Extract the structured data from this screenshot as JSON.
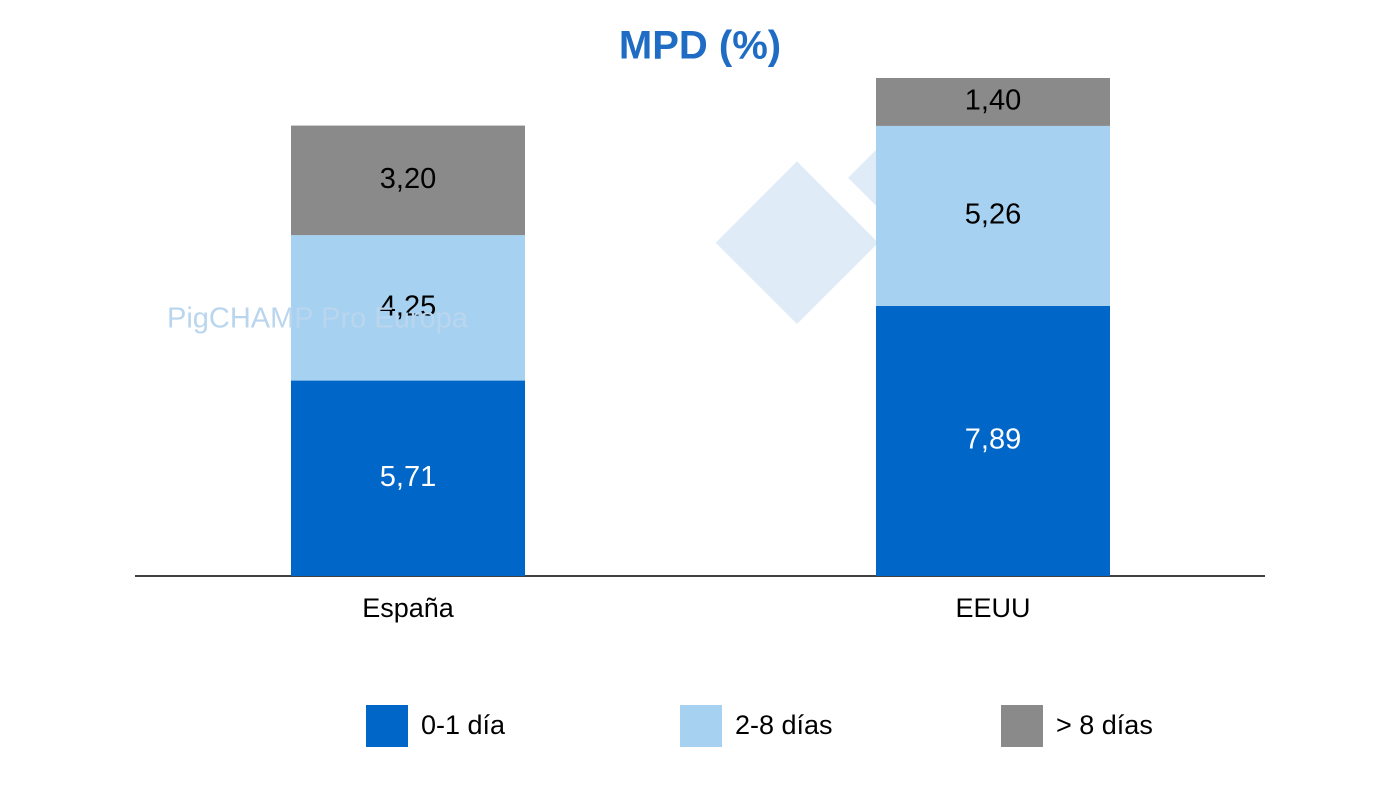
{
  "chart_data": {
    "type": "stacked_bar",
    "title": "MPD (%)",
    "watermark": "PigCHAMP Pro Europa",
    "categories": [
      "España",
      "EEUU"
    ],
    "series": [
      {
        "name": "0-1 día",
        "color": "#0066c8",
        "values": [
          5.71,
          7.89
        ],
        "value_labels": [
          "5,71",
          "7,89"
        ]
      },
      {
        "name": "2-8 días",
        "color": "#a6d1f0",
        "values": [
          4.25,
          5.26
        ],
        "value_labels": [
          "4,25",
          "5,26"
        ]
      },
      {
        "name": "> 8 días",
        "color": "#8a8a8a",
        "values": [
          3.2,
          1.4
        ],
        "value_labels": [
          "3,20",
          "1,40"
        ]
      }
    ],
    "legend": "bottom"
  }
}
